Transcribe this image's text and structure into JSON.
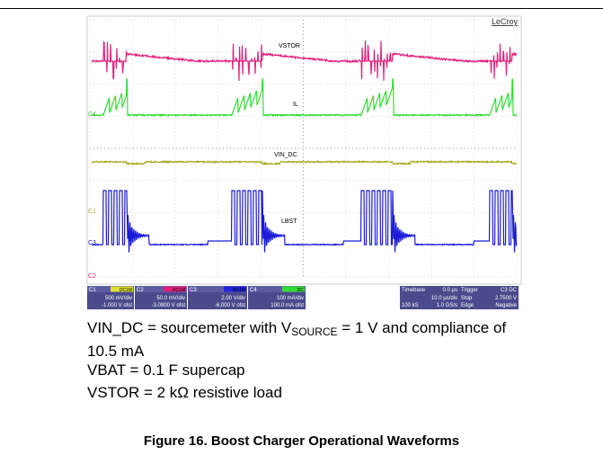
{
  "header": {
    "brand": "LeCroy"
  },
  "traces": [
    {
      "label": "VSTOR"
    },
    {
      "label": "IL"
    },
    {
      "label": "VIN_DC"
    },
    {
      "label": "LBST"
    }
  ],
  "channel_markers": [
    "C4",
    "C1",
    "C3",
    "C2"
  ],
  "info_bar": {
    "channels": [
      {
        "name": "C1",
        "coupling": "DC1M",
        "scale": "500 mV/div",
        "offset": "-1.000 V ofst"
      },
      {
        "name": "C2",
        "coupling": "DC1M",
        "scale": "50.0 mV/div",
        "offset": "-3.0800 V ofst"
      },
      {
        "name": "C3",
        "coupling": "DC1M",
        "scale": "2.00 V/div",
        "offset": "-6.000 V ofst"
      },
      {
        "name": "C4",
        "coupling": "DC",
        "scale": "100 mA/div",
        "offset": "100.0 mA ofst"
      }
    ],
    "timebase": {
      "label": "Timebase",
      "delay": "0.0 µs",
      "scale": "10.0 µs/div",
      "samples": "100 kS",
      "rate": "1.0 GS/s"
    },
    "trigger": {
      "label": "Trigger",
      "source": "C3 DC",
      "mode": "Stop",
      "level": "2.7500 V",
      "type": "Edge",
      "slope": "Negative"
    }
  },
  "notes": [
    {
      "parts": [
        "VIN_DC = sourcemeter with V",
        "SOURCE",
        " = 1 V and compliance of 10.5 mA"
      ]
    },
    "VBAT = 0.1 F supercap",
    "VSTOR = 2 kΩ resistive load"
  ],
  "caption": "Figure 16. Boost Charger Operational Waveforms"
}
